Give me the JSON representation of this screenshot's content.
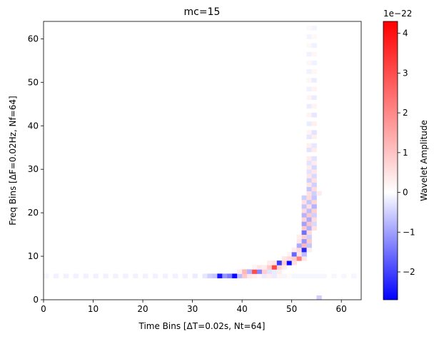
{
  "chart_data": {
    "type": "heatmap",
    "title": "mc=15",
    "xlabel": "Time Bins [ΔT=0.02s, Nt=64]",
    "ylabel": "Freq Bins [ΔF=0.02Hz, Nf=64]",
    "xlim": [
      0,
      64
    ],
    "ylim": [
      0,
      64
    ],
    "x_ticks": [
      "0",
      "10",
      "20",
      "30",
      "40",
      "50",
      "60"
    ],
    "y_ticks": [
      "0",
      "10",
      "20",
      "30",
      "40",
      "50",
      "60"
    ],
    "n_time_bins": 64,
    "n_freq_bins": 64,
    "colormap": "bwr",
    "colorbar": {
      "label": "Wavelet Amplitude",
      "exponent_label": "1e−22",
      "vmin": -2.7,
      "vmax": 4.3,
      "tick_values": [
        -2,
        -1,
        0,
        1,
        2,
        3,
        4
      ],
      "tick_labels": [
        "−2",
        "−1",
        "0",
        "1",
        "2",
        "3",
        "4"
      ],
      "color_low": "#0000ff",
      "color_mid": "#ffffff",
      "color_high": "#ff0000"
    },
    "cells": [
      [
        0,
        5,
        -0.1
      ],
      [
        2,
        5,
        -0.15
      ],
      [
        4,
        5,
        -0.15
      ],
      [
        6,
        5,
        -0.15
      ],
      [
        8,
        5,
        -0.15
      ],
      [
        10,
        5,
        -0.15
      ],
      [
        12,
        5,
        -0.15
      ],
      [
        14,
        5,
        -0.15
      ],
      [
        16,
        5,
        -0.15
      ],
      [
        18,
        5,
        -0.15
      ],
      [
        20,
        5,
        -0.15
      ],
      [
        22,
        5,
        -0.15
      ],
      [
        24,
        5,
        -0.15
      ],
      [
        26,
        5,
        -0.15
      ],
      [
        28,
        5,
        -0.15
      ],
      [
        30,
        5,
        -0.2
      ],
      [
        32,
        5,
        -0.25
      ],
      [
        33,
        5,
        -0.5
      ],
      [
        34,
        5,
        -0.6
      ],
      [
        35,
        5,
        -2.5
      ],
      [
        36,
        5,
        -1.1
      ],
      [
        37,
        5,
        -1.4
      ],
      [
        38,
        5,
        -2.6
      ],
      [
        39,
        5,
        -0.7
      ],
      [
        40,
        5,
        0.9
      ],
      [
        41,
        5,
        0.4
      ],
      [
        42,
        5,
        0.3
      ],
      [
        43,
        5,
        0.2
      ],
      [
        44,
        5,
        -0.2
      ],
      [
        45,
        5,
        0.3
      ],
      [
        46,
        5,
        -0.2
      ],
      [
        47,
        5,
        0.2
      ],
      [
        48,
        5,
        -0.1
      ],
      [
        49,
        5,
        0.1
      ],
      [
        50,
        5,
        -0.1
      ],
      [
        51,
        5,
        -0.1
      ],
      [
        52,
        5,
        -0.1
      ],
      [
        53,
        5,
        -0.1
      ],
      [
        54,
        5,
        -0.1
      ],
      [
        55,
        5,
        -0.1
      ],
      [
        56,
        5,
        -0.1
      ],
      [
        58,
        5,
        -0.1
      ],
      [
        60,
        5,
        -0.1
      ],
      [
        62,
        5,
        -0.1
      ],
      [
        39,
        6,
        0.3
      ],
      [
        40,
        6,
        1.2
      ],
      [
        41,
        6,
        -0.8
      ],
      [
        42,
        6,
        3.0
      ],
      [
        43,
        6,
        -1.3
      ],
      [
        44,
        6,
        0.8
      ],
      [
        45,
        6,
        -0.3
      ],
      [
        46,
        6,
        -0.2
      ],
      [
        47,
        6,
        0.3
      ],
      [
        42,
        7,
        0.2
      ],
      [
        43,
        7,
        0.4
      ],
      [
        44,
        7,
        0.3
      ],
      [
        45,
        7,
        0.9
      ],
      [
        46,
        7,
        3.1
      ],
      [
        47,
        7,
        0.7
      ],
      [
        48,
        7,
        0.3
      ],
      [
        45,
        8,
        0.3
      ],
      [
        46,
        8,
        0.4
      ],
      [
        47,
        8,
        -2.1
      ],
      [
        48,
        8,
        0.8
      ],
      [
        49,
        8,
        -2.6
      ],
      [
        50,
        8,
        0.5
      ],
      [
        48,
        9,
        0.4
      ],
      [
        49,
        9,
        0.6
      ],
      [
        50,
        9,
        0.8
      ],
      [
        51,
        9,
        2.2
      ],
      [
        52,
        9,
        0.4
      ],
      [
        49,
        10,
        0.2
      ],
      [
        50,
        10,
        -1.6
      ],
      [
        51,
        10,
        0.4
      ],
      [
        52,
        10,
        -0.7
      ],
      [
        50,
        11,
        0.3
      ],
      [
        51,
        11,
        0.6
      ],
      [
        52,
        11,
        -2.3
      ],
      [
        53,
        11,
        0.3
      ],
      [
        51,
        12,
        -0.9
      ],
      [
        52,
        12,
        1.2
      ],
      [
        53,
        12,
        -0.6
      ],
      [
        51,
        13,
        0.4
      ],
      [
        52,
        13,
        -1.1
      ],
      [
        53,
        13,
        0.9
      ],
      [
        51,
        14,
        0.3
      ],
      [
        52,
        14,
        0.8
      ],
      [
        53,
        14,
        -0.5
      ],
      [
        52,
        15,
        -1.5
      ],
      [
        53,
        15,
        0.6
      ],
      [
        52,
        16,
        0.9
      ],
      [
        53,
        16,
        -0.8
      ],
      [
        54,
        16,
        0.5
      ],
      [
        52,
        17,
        -1.0
      ],
      [
        53,
        17,
        1.0
      ],
      [
        54,
        17,
        -0.4
      ],
      [
        52,
        18,
        0.7
      ],
      [
        53,
        18,
        -0.9
      ],
      [
        54,
        18,
        0.6
      ],
      [
        52,
        19,
        -0.8
      ],
      [
        53,
        19,
        0.9
      ],
      [
        54,
        19,
        -0.5
      ],
      [
        52,
        20,
        0.6
      ],
      [
        53,
        20,
        -0.7
      ],
      [
        54,
        20,
        0.8
      ],
      [
        52,
        21,
        -0.6
      ],
      [
        53,
        21,
        0.5
      ],
      [
        54,
        21,
        -0.8
      ],
      [
        52,
        22,
        0.5
      ],
      [
        53,
        22,
        -0.6
      ],
      [
        54,
        22,
        0.7
      ],
      [
        52,
        23,
        -0.5
      ],
      [
        53,
        23,
        0.6
      ],
      [
        54,
        23,
        -0.6
      ],
      [
        53,
        24,
        0.5
      ],
      [
        54,
        24,
        -0.5
      ],
      [
        55,
        24,
        0.3
      ],
      [
        53,
        25,
        -0.6
      ],
      [
        54,
        25,
        0.6
      ],
      [
        53,
        26,
        0.4
      ],
      [
        54,
        26,
        -0.5
      ],
      [
        53,
        27,
        -0.5
      ],
      [
        54,
        27,
        0.5
      ],
      [
        53,
        28,
        0.4
      ],
      [
        54,
        28,
        -0.4
      ],
      [
        53,
        29,
        -0.3
      ],
      [
        54,
        29,
        0.4
      ],
      [
        53,
        30,
        0.3
      ],
      [
        54,
        30,
        -0.4
      ],
      [
        53,
        31,
        -0.3
      ],
      [
        54,
        31,
        0.3
      ],
      [
        53,
        32,
        0.3
      ],
      [
        54,
        32,
        -0.3
      ],
      [
        53,
        34,
        -0.3
      ],
      [
        54,
        34,
        0.3
      ],
      [
        53,
        35,
        0.25
      ],
      [
        54,
        35,
        -0.25
      ],
      [
        53,
        37,
        -0.25
      ],
      [
        54,
        37,
        0.25
      ],
      [
        53,
        38,
        0.2
      ],
      [
        54,
        38,
        -0.3
      ],
      [
        53,
        40,
        -0.2
      ],
      [
        54,
        40,
        0.25
      ],
      [
        53,
        42,
        0.2
      ],
      [
        54,
        42,
        -0.25
      ],
      [
        53,
        44,
        -0.2
      ],
      [
        54,
        44,
        0.2
      ],
      [
        53,
        46,
        0.2
      ],
      [
        54,
        46,
        -0.2
      ],
      [
        53,
        48,
        -0.15
      ],
      [
        54,
        48,
        0.2
      ],
      [
        53,
        50,
        0.15
      ],
      [
        54,
        50,
        -0.2
      ],
      [
        53,
        52,
        -0.15
      ],
      [
        54,
        52,
        0.15
      ],
      [
        53,
        54,
        0.15
      ],
      [
        54,
        54,
        -0.15
      ],
      [
        53,
        56,
        -0.15
      ],
      [
        54,
        56,
        0.15
      ],
      [
        53,
        58,
        0.12
      ],
      [
        54,
        58,
        -0.15
      ],
      [
        53,
        60,
        -0.12
      ],
      [
        54,
        60,
        0.12
      ],
      [
        53,
        62,
        0.12
      ],
      [
        54,
        62,
        -0.12
      ],
      [
        55,
        0,
        -0.5
      ]
    ]
  }
}
